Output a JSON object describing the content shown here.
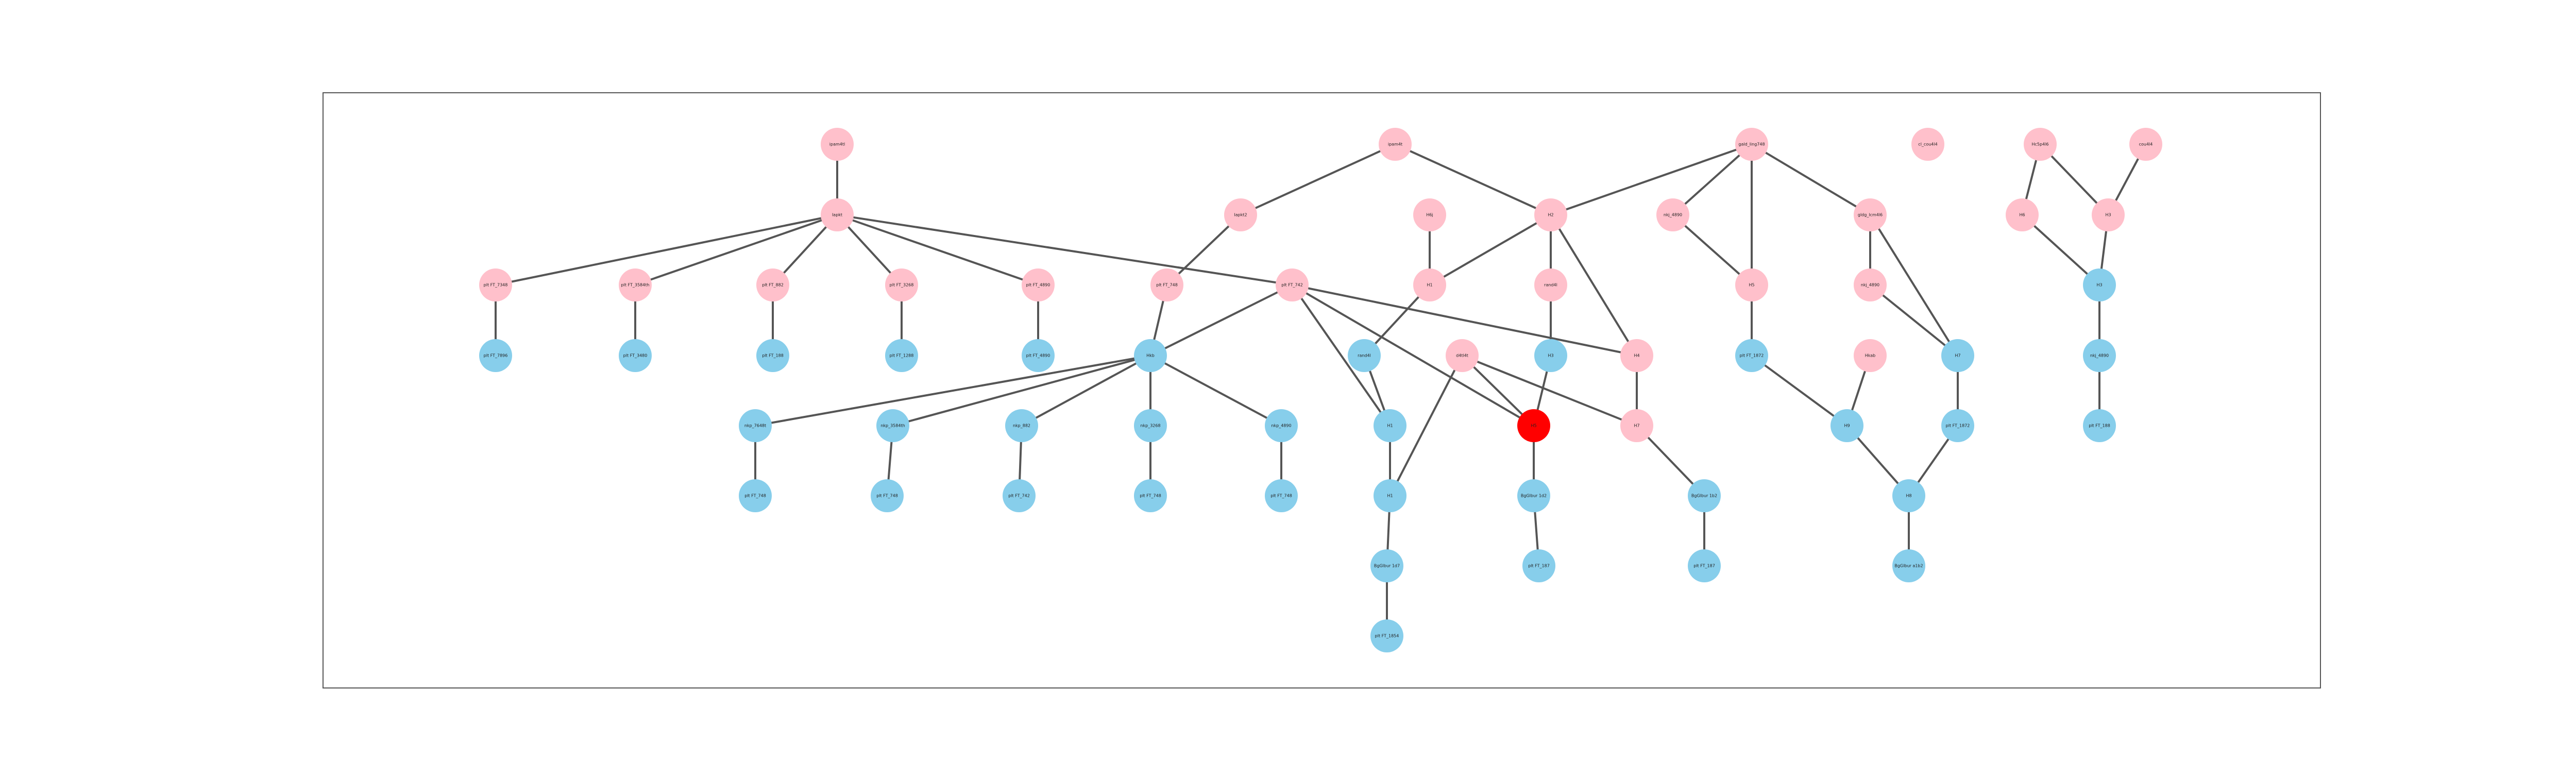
{
  "colors": {
    "pink": "#ffc0cb",
    "blue": "#87ceeb",
    "red": "#ff0000",
    "edge": "#555555",
    "frame": "#555555"
  },
  "nodes": [
    {
      "id": "n1",
      "label": "ipam4tl",
      "color": "pink"
    },
    {
      "id": "n2",
      "label": "Iapkt",
      "color": "pink"
    },
    {
      "id": "n3",
      "label": "plt FT_7348",
      "color": "pink"
    },
    {
      "id": "n4",
      "label": "plt FT_3584th",
      "color": "pink"
    },
    {
      "id": "n5",
      "label": "plt FT_882",
      "color": "pink"
    },
    {
      "id": "n6",
      "label": "plt FT_3268",
      "color": "pink"
    },
    {
      "id": "n7",
      "label": "plt FT_4890",
      "color": "pink"
    },
    {
      "id": "n8",
      "label": "plt FT_7896",
      "color": "blue"
    },
    {
      "id": "n9",
      "label": "plt FT_3480",
      "color": "blue"
    },
    {
      "id": "n10",
      "label": "plt FT_188",
      "color": "blue"
    },
    {
      "id": "n11",
      "label": "plt FT_1288",
      "color": "blue"
    },
    {
      "id": "n12",
      "label": "plt FT_4890",
      "color": "blue"
    },
    {
      "id": "n13",
      "label": "ipam4t",
      "color": "pink"
    },
    {
      "id": "n14",
      "label": "Iapkt2",
      "color": "pink"
    },
    {
      "id": "n15",
      "label": "plt FT_748",
      "color": "pink"
    },
    {
      "id": "n16",
      "label": "plt FT_742",
      "color": "pink"
    },
    {
      "id": "n17",
      "label": "Hkb",
      "color": "blue"
    },
    {
      "id": "n18",
      "label": "nkp_7648t",
      "color": "blue"
    },
    {
      "id": "n19",
      "label": "nkp_3584th",
      "color": "blue"
    },
    {
      "id": "n20",
      "label": "nkp_882",
      "color": "blue"
    },
    {
      "id": "n21",
      "label": "nkp_3268",
      "color": "blue"
    },
    {
      "id": "n22",
      "label": "nkp_4890",
      "color": "blue"
    },
    {
      "id": "n23",
      "label": "plt FT_748",
      "color": "blue"
    },
    {
      "id": "n24",
      "label": "plt FT_748",
      "color": "blue"
    },
    {
      "id": "n25",
      "label": "plt FT_742",
      "color": "blue"
    },
    {
      "id": "n26",
      "label": "plt FT_748",
      "color": "blue"
    },
    {
      "id": "n27",
      "label": "plt FT_748",
      "color": "blue"
    },
    {
      "id": "n28",
      "label": "H6j",
      "color": "pink"
    },
    {
      "id": "n29",
      "label": "H1",
      "color": "pink"
    },
    {
      "id": "n30",
      "label": "H2",
      "color": "pink"
    },
    {
      "id": "n31",
      "label": "rand4l",
      "color": "pink"
    },
    {
      "id": "n32",
      "label": "rand4l",
      "color": "blue"
    },
    {
      "id": "n33",
      "label": "d4tl4t",
      "color": "pink"
    },
    {
      "id": "n34",
      "label": "H3",
      "color": "blue"
    },
    {
      "id": "n35",
      "label": "H4",
      "color": "pink"
    },
    {
      "id": "n36",
      "label": "H1",
      "color": "blue"
    },
    {
      "id": "n37",
      "label": "H5",
      "color": "red"
    },
    {
      "id": "n38",
      "label": "H7",
      "color": "pink"
    },
    {
      "id": "n39",
      "label": "H1",
      "color": "blue"
    },
    {
      "id": "n40",
      "label": "BgGlbur 1d7",
      "color": "blue"
    },
    {
      "id": "n41",
      "label": "BgGlbur 1d2",
      "color": "blue"
    },
    {
      "id": "n42",
      "label": "BgGlbur 1b2",
      "color": "blue"
    },
    {
      "id": "n43",
      "label": "plt FT_1854",
      "color": "blue"
    },
    {
      "id": "n44",
      "label": "plt FT_187",
      "color": "blue"
    },
    {
      "id": "n45",
      "label": "plt FT_187",
      "color": "blue"
    },
    {
      "id": "n46",
      "label": "gald_ling748",
      "color": "pink"
    },
    {
      "id": "n47",
      "label": "nkj_4890",
      "color": "pink"
    },
    {
      "id": "n48",
      "label": "H5",
      "color": "pink"
    },
    {
      "id": "n49",
      "label": "gldg_lcm4l6",
      "color": "pink"
    },
    {
      "id": "n50",
      "label": "nkj_4890",
      "color": "pink"
    },
    {
      "id": "n51",
      "label": "plt FT_1872",
      "color": "blue"
    },
    {
      "id": "n52",
      "label": "Hkab",
      "color": "pink"
    },
    {
      "id": "n53",
      "label": "H9",
      "color": "blue"
    },
    {
      "id": "n54",
      "label": "H7",
      "color": "blue"
    },
    {
      "id": "n55",
      "label": "plt FT_1872",
      "color": "blue"
    },
    {
      "id": "n56",
      "label": "H8",
      "color": "blue"
    },
    {
      "id": "n57",
      "label": "BgGlbur a1b2",
      "color": "blue"
    },
    {
      "id": "n58",
      "label": "cl_cou4l4",
      "color": "pink"
    },
    {
      "id": "n59",
      "label": "Hc5p4l6",
      "color": "pink"
    },
    {
      "id": "n60",
      "label": "cou4l4",
      "color": "pink"
    },
    {
      "id": "n61",
      "label": "H6",
      "color": "pink"
    },
    {
      "id": "n62",
      "label": "H3",
      "color": "pink"
    },
    {
      "id": "n63",
      "label": "H3",
      "color": "blue"
    },
    {
      "id": "n64",
      "label": "nkj_4890",
      "color": "blue"
    },
    {
      "id": "n65",
      "label": "plt FT_188",
      "color": "blue"
    }
  ],
  "edges": [
    [
      "n1",
      "n2"
    ],
    [
      "n2",
      "n3"
    ],
    [
      "n2",
      "n4"
    ],
    [
      "n2",
      "n5"
    ],
    [
      "n2",
      "n6"
    ],
    [
      "n2",
      "n7"
    ],
    [
      "n2",
      "n16"
    ],
    [
      "n3",
      "n8"
    ],
    [
      "n4",
      "n9"
    ],
    [
      "n5",
      "n10"
    ],
    [
      "n6",
      "n11"
    ],
    [
      "n7",
      "n12"
    ],
    [
      "n13",
      "n14"
    ],
    [
      "n13",
      "n30"
    ],
    [
      "n14",
      "n15"
    ],
    [
      "n15",
      "n17"
    ],
    [
      "n16",
      "n17"
    ],
    [
      "n16",
      "n36"
    ],
    [
      "n16",
      "n35"
    ],
    [
      "n16",
      "n37"
    ],
    [
      "n17",
      "n18"
    ],
    [
      "n17",
      "n19"
    ],
    [
      "n17",
      "n20"
    ],
    [
      "n17",
      "n21"
    ],
    [
      "n17",
      "n22"
    ],
    [
      "n18",
      "n23"
    ],
    [
      "n19",
      "n24"
    ],
    [
      "n20",
      "n25"
    ],
    [
      "n21",
      "n26"
    ],
    [
      "n22",
      "n27"
    ],
    [
      "n28",
      "n29"
    ],
    [
      "n29",
      "n32"
    ],
    [
      "n30",
      "n29"
    ],
    [
      "n30",
      "n31"
    ],
    [
      "n30",
      "n35"
    ],
    [
      "n31",
      "n34"
    ],
    [
      "n34",
      "n37"
    ],
    [
      "n32",
      "n36"
    ],
    [
      "n33",
      "n37"
    ],
    [
      "n33",
      "n38"
    ],
    [
      "n33",
      "n39"
    ],
    [
      "n35",
      "n38"
    ],
    [
      "n36",
      "n39"
    ],
    [
      "n39",
      "n40"
    ],
    [
      "n40",
      "n43"
    ],
    [
      "n37",
      "n41"
    ],
    [
      "n41",
      "n44"
    ],
    [
      "n38",
      "n42"
    ],
    [
      "n42",
      "n45"
    ],
    [
      "n46",
      "n30"
    ],
    [
      "n46",
      "n47"
    ],
    [
      "n46",
      "n48"
    ],
    [
      "n46",
      "n49"
    ],
    [
      "n47",
      "n48"
    ],
    [
      "n48",
      "n51"
    ],
    [
      "n51",
      "n53"
    ],
    [
      "n49",
      "n50"
    ],
    [
      "n49",
      "n54"
    ],
    [
      "n50",
      "n54"
    ],
    [
      "n52",
      "n53"
    ],
    [
      "n53",
      "n56"
    ],
    [
      "n54",
      "n55"
    ],
    [
      "n55",
      "n56"
    ],
    [
      "n56",
      "n57"
    ],
    [
      "n59",
      "n61"
    ],
    [
      "n59",
      "n62"
    ],
    [
      "n60",
      "n62"
    ],
    [
      "n61",
      "n63"
    ],
    [
      "n62",
      "n63"
    ],
    [
      "n63",
      "n64"
    ],
    [
      "n64",
      "n65"
    ]
  ]
}
